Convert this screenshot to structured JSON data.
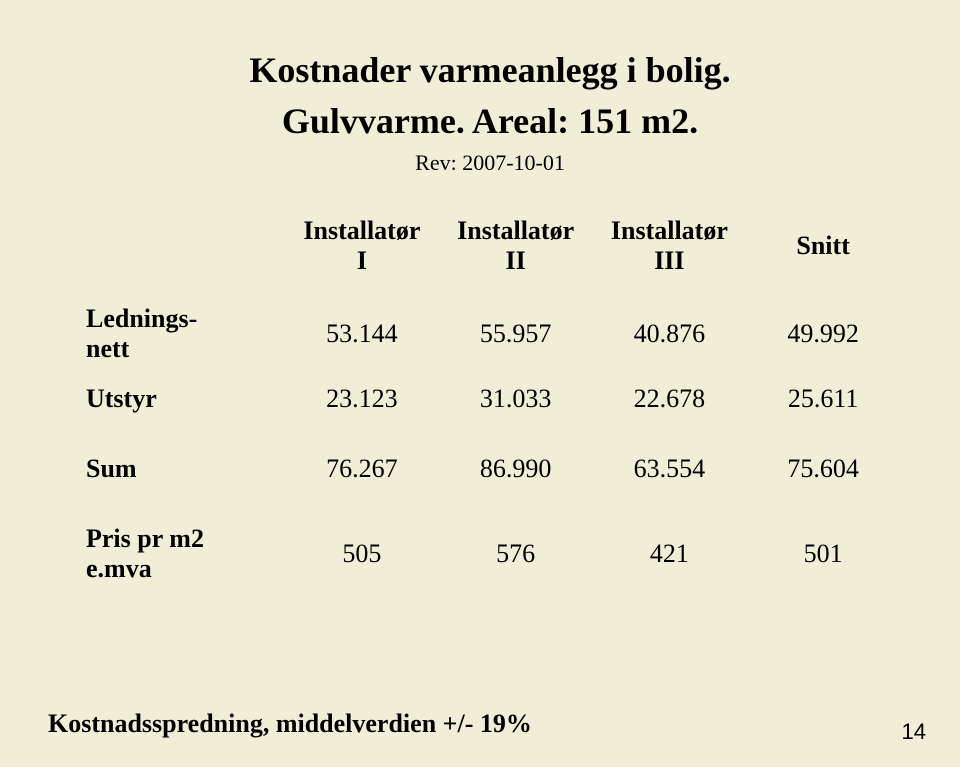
{
  "title_line1": "Kostnader varmeanlegg i bolig.",
  "title_line2": "Gulvvarme. Areal: 151 m2.",
  "rev": "Rev: 2007-10-01",
  "columns": {
    "blank": "",
    "c1a": "Installatør",
    "c1b": "I",
    "c2a": "Installatør",
    "c2b": "II",
    "c3a": "Installatør",
    "c3b": "III",
    "c4": "Snitt"
  },
  "rows": {
    "lednings_a": "Lednings-",
    "lednings_b": "nett",
    "utstyr": "Utstyr",
    "sum": "Sum",
    "pris_a": "Pris pr m2",
    "pris_b": "e.mva"
  },
  "vals": {
    "lednings": {
      "i": "53.144",
      "ii": "55.957",
      "iii": "40.876",
      "snitt": "49.992"
    },
    "utstyr": {
      "i": "23.123",
      "ii": "31.033",
      "iii": "22.678",
      "snitt": "25.611"
    },
    "sum": {
      "i": "76.267",
      "ii": "86.990",
      "iii": "63.554",
      "snitt": "75.604"
    },
    "pris": {
      "i": "505",
      "ii": "576",
      "iii": "421",
      "snitt": "501"
    }
  },
  "footnote": "Kostnadsspredning, middelverdien +/- 19%",
  "pagenum": "14",
  "style": {
    "background": "#f0eed6",
    "text_color": "#000000",
    "title_fontsize": 36,
    "body_fontsize": 26,
    "rev_fontsize": 22
  }
}
